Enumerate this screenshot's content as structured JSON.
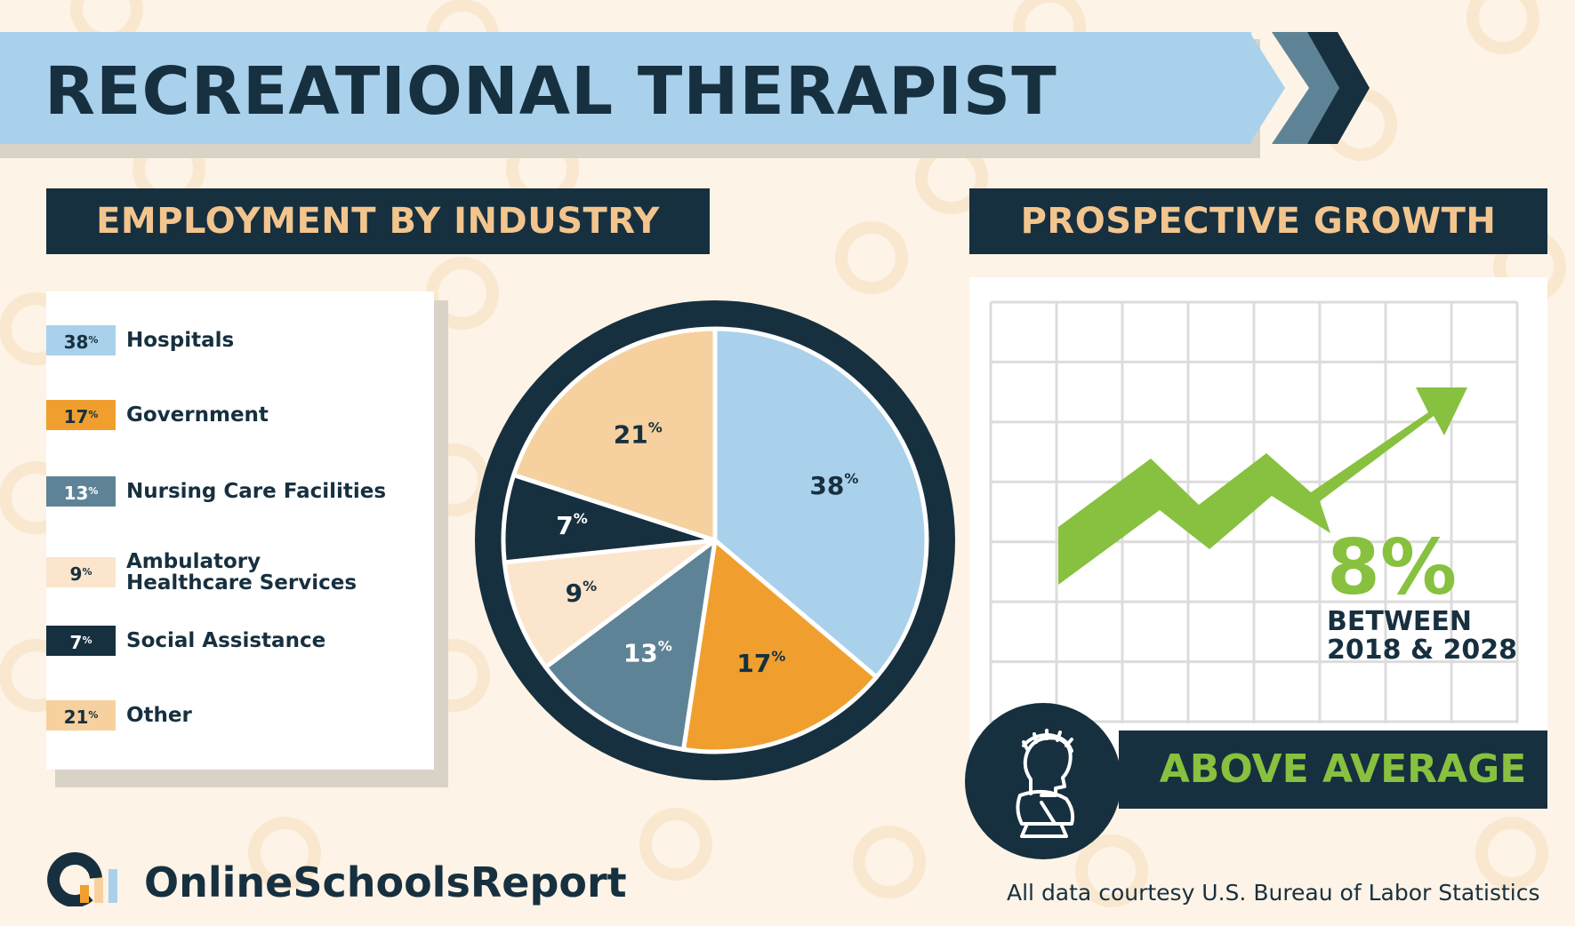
{
  "title": "RECREATIONAL THERAPIST",
  "employment_header": "EMPLOYMENT BY INDUSTRY",
  "growth_header": "PROSPECTIVE GROWTH",
  "legend": [
    {
      "pct": "38",
      "label": "Hospitals"
    },
    {
      "pct": "17",
      "label": "Government"
    },
    {
      "pct": "13",
      "label": "Nursing Care Facilities"
    },
    {
      "pct": "9",
      "label": "Ambulatory Healthcare Services"
    },
    {
      "pct": "7",
      "label": "Social Assistance"
    },
    {
      "pct": "21",
      "label": "Other"
    }
  ],
  "pct_symbol": "%",
  "chart_data": {
    "type": "pie",
    "categories": [
      "Hospitals",
      "Government",
      "Nursing Care Facilities",
      "Ambulatory Healthcare Services",
      "Social Assistance",
      "Other"
    ],
    "values": [
      38,
      17,
      13,
      9,
      7,
      21
    ],
    "slice_labels": [
      "38",
      "17",
      "13",
      "9",
      "7",
      "21"
    ],
    "colors": [
      "#a9d1ec",
      "#f09f2f",
      "#5f8396",
      "#fbe5cc",
      "#17303f",
      "#f6d09e"
    ],
    "label_colors": [
      "#17303f",
      "#17303f",
      "#ffffff",
      "#17303f",
      "#ffffff",
      "#17303f"
    ],
    "start_angle_deg": 0
  },
  "growth": {
    "percent": "8%",
    "period": "BETWEEN 2018 & 2028",
    "rating": "ABOVE AVERAGE"
  },
  "brand": "OnlineSchoolsReport",
  "source": "All data courtesy U.S. Bureau of Labor Statistics",
  "colors": {
    "navy": "#17303f",
    "light_blue": "#a9d1ec",
    "orange": "#f09f2f",
    "slate": "#5f8396",
    "peach": "#f6d09e",
    "cream": "#fbe5cc",
    "green": "#87c13f",
    "background": "#fdf3e6"
  }
}
